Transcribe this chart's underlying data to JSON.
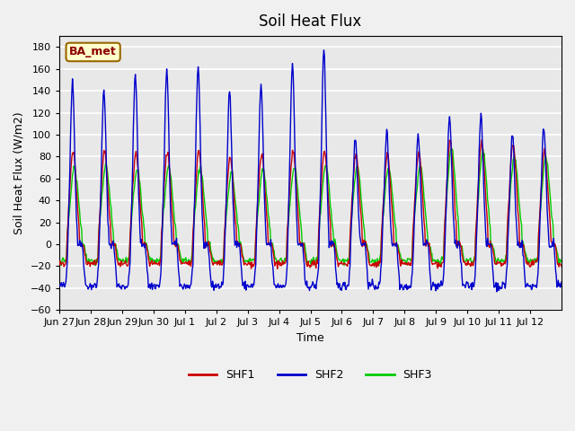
{
  "title": "Soil Heat Flux",
  "xlabel": "Time",
  "ylabel": "Soil Heat Flux (W/m2)",
  "ylim": [
    -60,
    190
  ],
  "yticks": [
    -60,
    -40,
    -20,
    0,
    20,
    40,
    60,
    80,
    100,
    120,
    140,
    160,
    180
  ],
  "x_tick_labels": [
    "Jun 27",
    "Jun 28",
    "Jun 29",
    "Jun 30",
    "Jul 1",
    "Jul 2",
    "Jul 3",
    "Jul 4",
    "Jul 5",
    "Jul 6",
    "Jul 7",
    "Jul 8",
    "Jul 9",
    "Jul 10",
    "Jul 11",
    "Jul 12"
  ],
  "legend_labels": [
    "SHF1",
    "SHF2",
    "SHF3"
  ],
  "shf1_color": "#cc0000",
  "shf2_color": "#0000cc",
  "shf3_color": "#00cc00",
  "background_color": "#e8e8e8",
  "grid_color": "#ffffff",
  "annotation_text": "BA_met",
  "annotation_bg": "#ffffcc",
  "annotation_border": "#996600",
  "n_days": 16,
  "points_per_day": 48
}
